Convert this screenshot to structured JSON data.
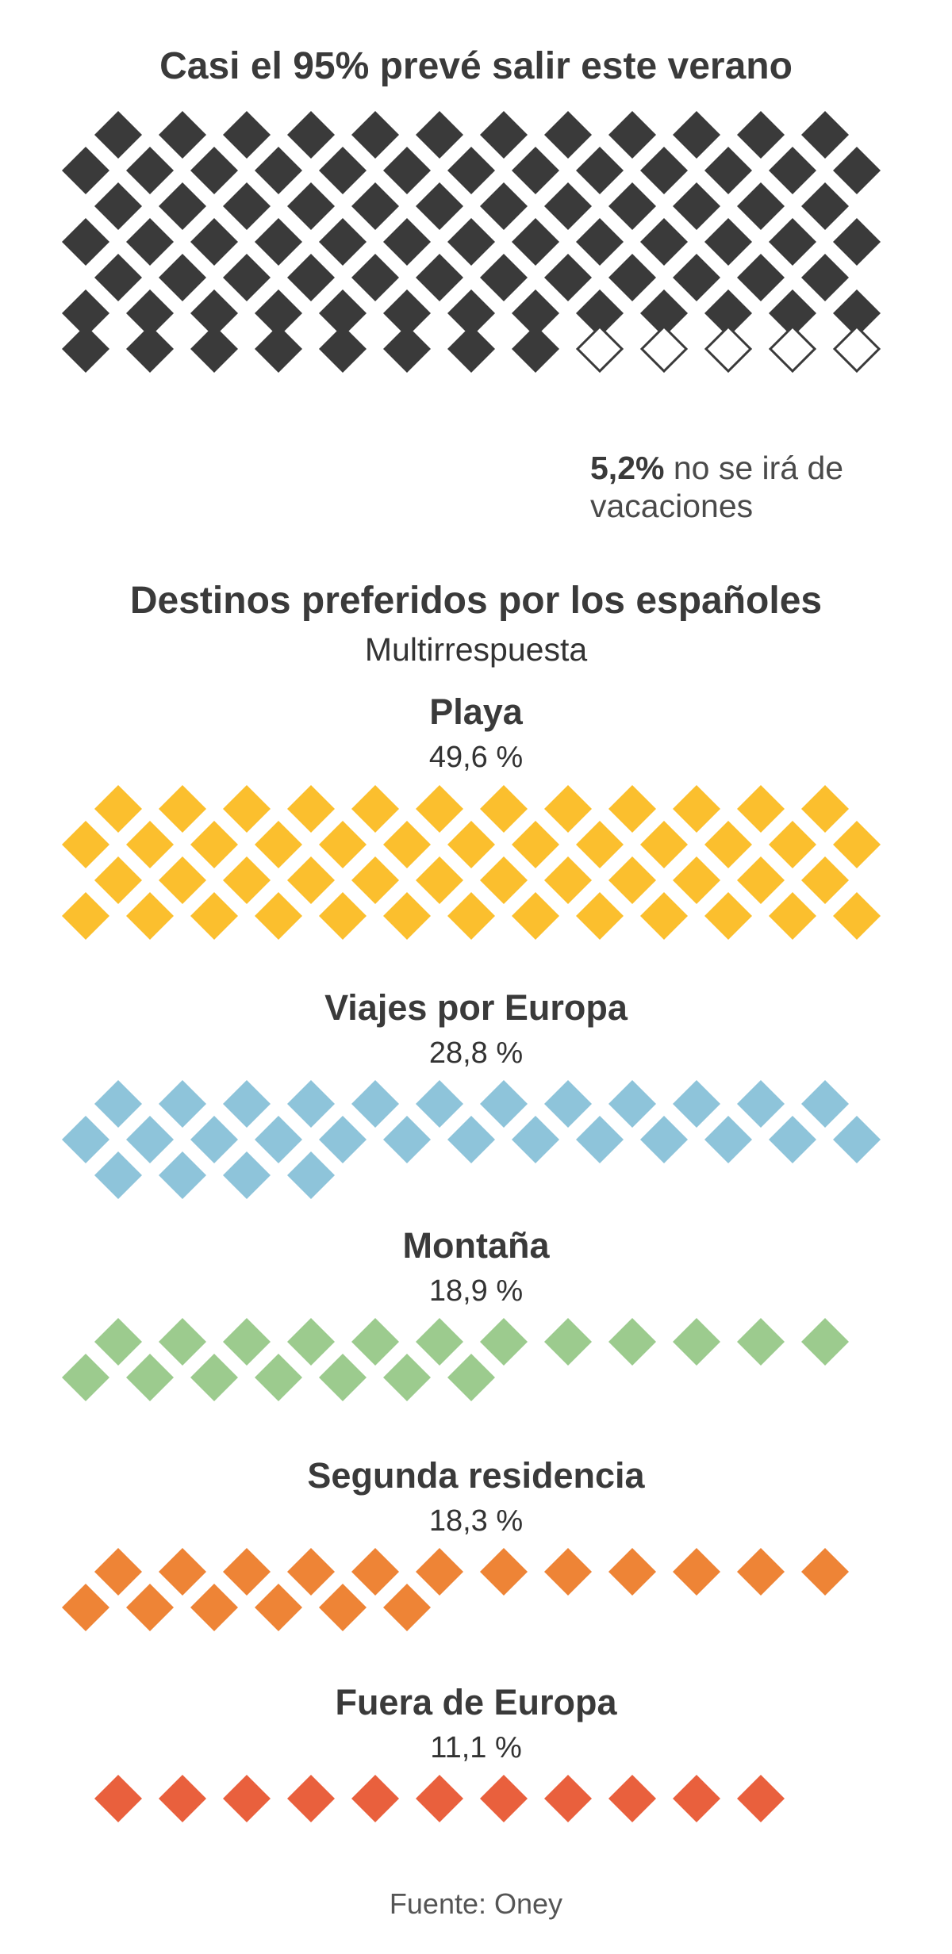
{
  "chart_data": [
    {
      "type": "pictogram",
      "title": "Casi el 95% prevé salir este verano",
      "values": [
        94.8,
        5.2
      ],
      "annotation": {
        "value": "5,2%",
        "text": "no se irá de vacaciones"
      },
      "colors": [
        "#3a3a3a",
        "#ffffff"
      ]
    },
    {
      "type": "pictogram",
      "title": "Destinos preferidos por los españoles",
      "subtitle": "Multirrespuesta",
      "categories": [
        "Playa",
        "Viajes por Europa",
        "Montaña",
        "Segunda residencia",
        "Fuera de Europa"
      ],
      "value_labels": [
        "49,6 %",
        "28,8 %",
        "18,9 %",
        "18,3 %",
        "11,1 %"
      ],
      "values": [
        49.6,
        28.8,
        18.9,
        18.3,
        11.1
      ],
      "colors": [
        "#fbbf2e",
        "#8ec4da",
        "#9ccb8e",
        "#ee8436",
        "#e9603d"
      ]
    }
  ],
  "source": "Fuente: Oney"
}
